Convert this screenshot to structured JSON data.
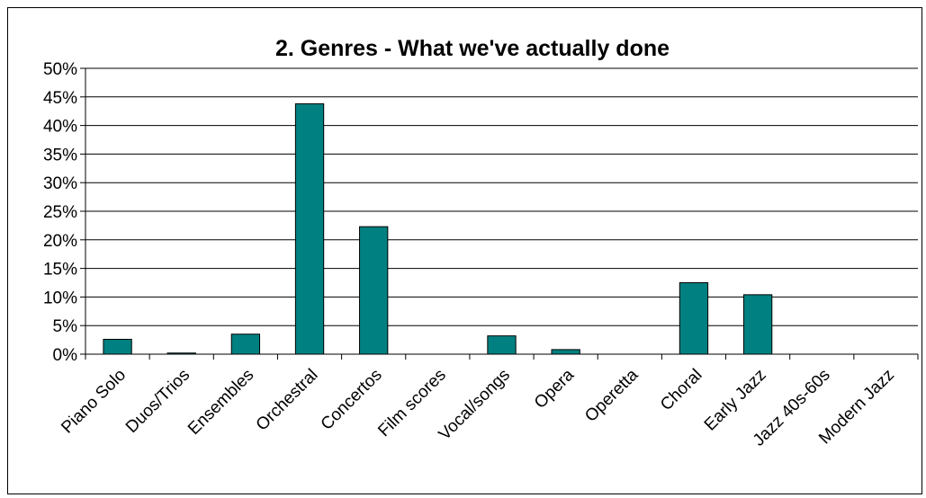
{
  "chart_data": {
    "type": "bar",
    "title": "2. Genres - What we've actually done",
    "categories": [
      "Piano Solo",
      "Duos/Trios",
      "Ensembles",
      "Orchestral",
      "Concertos",
      "Film scores",
      "Vocal/songs",
      "Opera",
      "Operetta",
      "Choral",
      "Early Jazz",
      "Jazz 40s-60s",
      "Modern Jazz"
    ],
    "values": [
      2.6,
      0.2,
      3.5,
      43.8,
      22.3,
      0,
      3.2,
      0.8,
      0,
      12.5,
      10.4,
      0,
      0
    ],
    "ylim": [
      0,
      50
    ],
    "yticks": [
      "0%",
      "5%",
      "10%",
      "15%",
      "20%",
      "25%",
      "30%",
      "35%",
      "40%",
      "45%",
      "50%"
    ],
    "grid": true,
    "legend": "none",
    "bar_color": "#008080"
  }
}
